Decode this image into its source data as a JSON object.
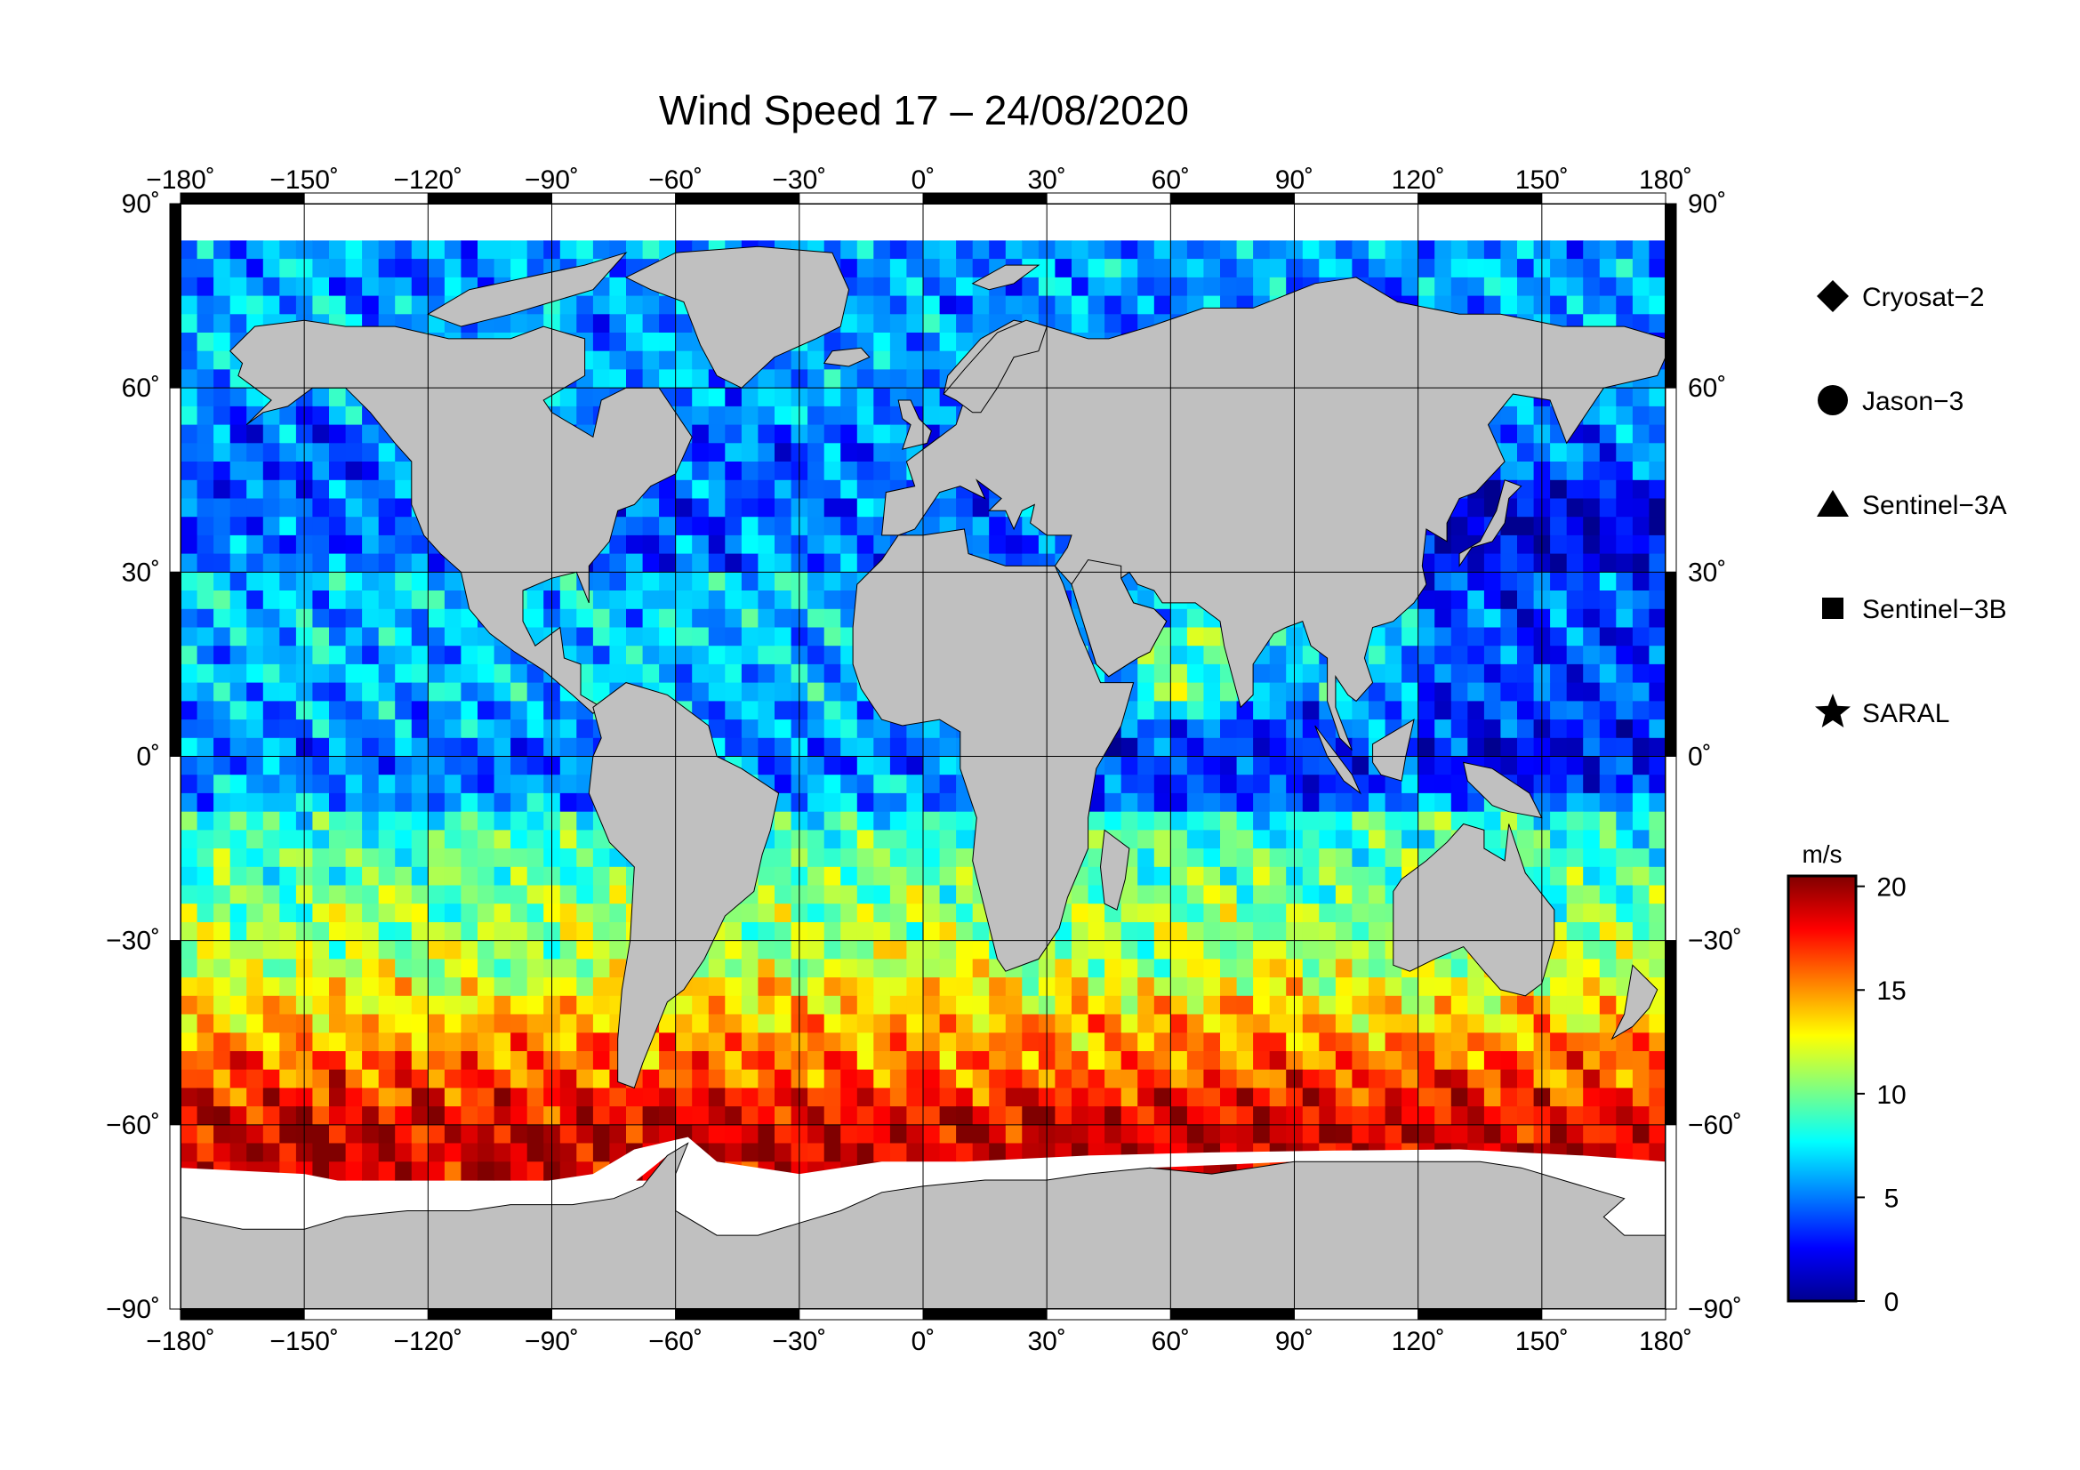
{
  "title": "Wind Speed 17 – 24/08/2020",
  "colors": {
    "land": "#c0c0c0",
    "ice": "#ffffff",
    "frame": "#000000",
    "gridline": "#000000"
  },
  "map": {
    "projection": "equirectangular",
    "lon_range": [
      -180,
      180
    ],
    "lat_range": [
      -90,
      90
    ],
    "grid_spacing_deg": 30,
    "lon_ticks": [
      {
        "value": -180,
        "label": "−180˚"
      },
      {
        "value": -150,
        "label": "−150˚"
      },
      {
        "value": -120,
        "label": "−120˚"
      },
      {
        "value": -90,
        "label": "−90˚"
      },
      {
        "value": -60,
        "label": "−60˚"
      },
      {
        "value": -30,
        "label": "−30˚"
      },
      {
        "value": 0,
        "label": "0˚"
      },
      {
        "value": 30,
        "label": "30˚"
      },
      {
        "value": 60,
        "label": "60˚"
      },
      {
        "value": 90,
        "label": "90˚"
      },
      {
        "value": 120,
        "label": "120˚"
      },
      {
        "value": 150,
        "label": "150˚"
      },
      {
        "value": 180,
        "label": "180˚"
      }
    ],
    "lat_ticks": [
      {
        "value": 90,
        "label": "90˚"
      },
      {
        "value": 60,
        "label": "60˚"
      },
      {
        "value": 30,
        "label": "30˚"
      },
      {
        "value": 0,
        "label": "0˚"
      },
      {
        "value": -30,
        "label": "−30˚"
      },
      {
        "value": -60,
        "label": "−60˚"
      },
      {
        "value": -90,
        "label": "−90˚"
      }
    ]
  },
  "legend": [
    {
      "shape": "diamond",
      "label": "Cryosat−2"
    },
    {
      "shape": "circle",
      "label": "Jason−3"
    },
    {
      "shape": "triangle",
      "label": "Sentinel−3A"
    },
    {
      "shape": "square",
      "label": "Sentinel−3B"
    },
    {
      "shape": "star",
      "label": "SARAL"
    }
  ],
  "colorbar": {
    "unit": "m/s",
    "range": [
      0,
      20.5
    ],
    "ticks": [
      {
        "value": 0,
        "label": "0"
      },
      {
        "value": 5,
        "label": "5"
      },
      {
        "value": 10,
        "label": "10"
      },
      {
        "value": 15,
        "label": "15"
      },
      {
        "value": 20,
        "label": "20"
      }
    ],
    "colormap": [
      "#00008f",
      "#0000ff",
      "#0080ff",
      "#00ffff",
      "#80ff80",
      "#ffff00",
      "#ff8000",
      "#ff0000",
      "#800000"
    ]
  }
}
